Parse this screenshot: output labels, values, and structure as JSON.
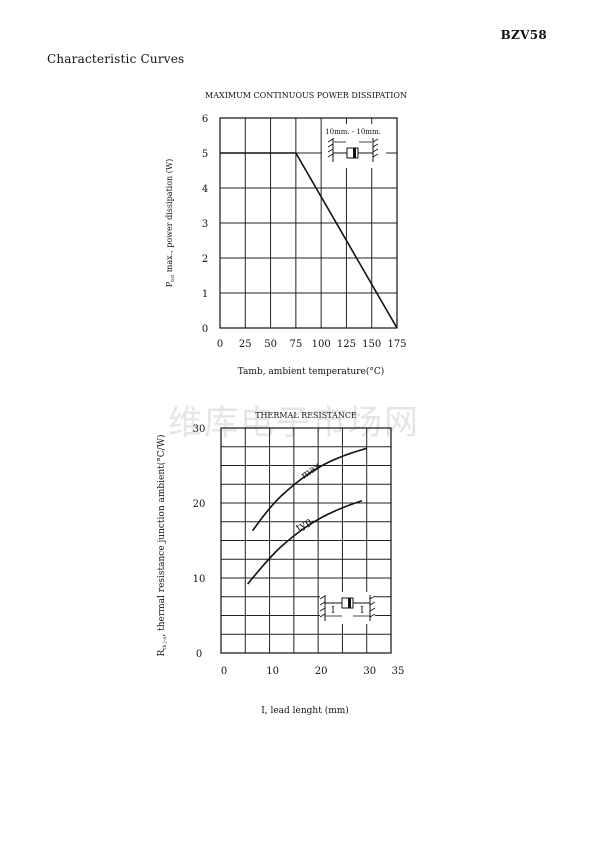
{
  "header": {
    "part_number": "BZV58",
    "section_title": "Characteristic Curves"
  },
  "watermark": "维库电子市场网",
  "chart_data": [
    {
      "type": "line",
      "title": "MAXIMUM CONTINUOUS POWER DISSIPATION",
      "xlabel": "Tamb, ambient temperature(°C)",
      "ylabel": "P",
      "ylabel_sub": "tot",
      "ylabel_rest": " max., power dissipation (W)",
      "xlim": [
        0,
        175
      ],
      "ylim": [
        0,
        6
      ],
      "xticks": [
        0,
        25,
        50,
        75,
        100,
        125,
        150,
        175
      ],
      "yticks": [
        0,
        1,
        2,
        3,
        4,
        5,
        6
      ],
      "grid": true,
      "inset_label": "10mm. - 10mm.",
      "series": [
        {
          "x": [
            0,
            75,
            175
          ],
          "y": [
            5,
            5,
            0
          ]
        }
      ]
    },
    {
      "type": "line",
      "title": "THERMAL RESISTANCE",
      "xlabel": "I, lead lenght (mm)",
      "ylabel": "R",
      "ylabel_sub": "th j-a",
      "ylabel_rest": ", thermal resistance junction ambient(°C/W)",
      "xlim": [
        0,
        35
      ],
      "ylim": [
        0,
        30
      ],
      "xticks": [
        0,
        10,
        20,
        30,
        35
      ],
      "yticks": [
        0,
        10,
        20,
        30
      ],
      "grid": true,
      "inset_label": "I",
      "series": [
        {
          "name": "max.",
          "x": [
            6.5,
            10,
            15,
            20,
            25,
            30
          ],
          "y": [
            16.3,
            19.5,
            22.5,
            24.8,
            26.3,
            27.3
          ]
        },
        {
          "name": "typ.",
          "x": [
            5.5,
            10,
            15,
            20,
            25,
            29
          ],
          "y": [
            9.2,
            12.8,
            15.7,
            17.9,
            19.4,
            20.3
          ]
        }
      ]
    }
  ]
}
